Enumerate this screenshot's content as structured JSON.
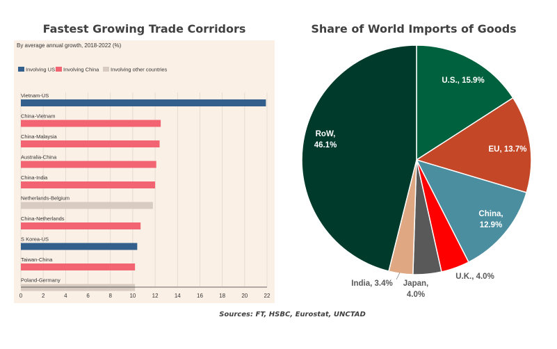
{
  "left_title": "Fastest Growing Trade Corridors",
  "right_title": "Share of World Imports of Goods",
  "sources": "Sources: FT, HSBC, Eurostat, UNCTAD",
  "chart_data": [
    {
      "type": "bar",
      "orientation": "horizontal",
      "title": "Fastest Growing Trade Corridors",
      "subtitle": "By average annual growth, 2018-2022 (%)",
      "legend": [
        {
          "name": "Involving US",
          "color": "#335F8C"
        },
        {
          "name": "Involving China",
          "color": "#F36472"
        },
        {
          "name": "Involving other countries",
          "color": "#D8CCC2"
        }
      ],
      "legend_position": "top-left",
      "categories": [
        "Vietnam-US",
        "China-Vietnam",
        "China-Malaysia",
        "Australia-China",
        "China-India",
        "Netherlands-Belgium",
        "China-Netherlands",
        "S Korea-US",
        "Taiwan-China",
        "Poland-Germany"
      ],
      "values": [
        21.9,
        12.5,
        12.4,
        12.1,
        12.0,
        11.8,
        10.7,
        10.4,
        10.2,
        10.2
      ],
      "groups": [
        "Involving US",
        "Involving China",
        "Involving China",
        "Involving China",
        "Involving China",
        "Involving other countries",
        "Involving China",
        "Involving US",
        "Involving China",
        "Involving other countries"
      ],
      "xlim": [
        0,
        22
      ],
      "xticks": [
        "0",
        "2",
        "4",
        "6",
        "8",
        "10",
        "12",
        "14",
        "16",
        "18",
        "20",
        "22"
      ],
      "grid": "vertical"
    },
    {
      "type": "pie",
      "title": "Share of World Imports of Goods",
      "slices": [
        {
          "name": "U.S.",
          "value": 15.9,
          "label": "U.S., 15.9%",
          "color": "#00613E"
        },
        {
          "name": "EU",
          "value": 13.7,
          "label": "EU, 13.7%",
          "color": "#C44828"
        },
        {
          "name": "China",
          "value": 12.9,
          "label": "China, 12.9%",
          "color": "#4A8EA0"
        },
        {
          "name": "U.K.",
          "value": 4.0,
          "label": "U.K., 4.0%",
          "color": "#FF0000"
        },
        {
          "name": "Japan",
          "value": 4.0,
          "label": "Japan, 4.0%",
          "color": "#595959"
        },
        {
          "name": "India",
          "value": 3.4,
          "label": "India, 3.4%",
          "color": "#E0A882"
        },
        {
          "name": "RoW",
          "value": 46.1,
          "label": "RoW, 46.1%",
          "color": "#003A2A"
        }
      ]
    }
  ]
}
